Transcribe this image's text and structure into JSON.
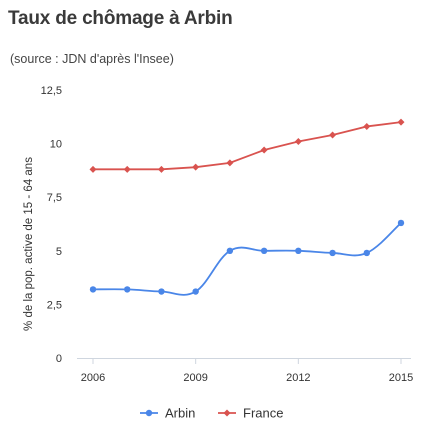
{
  "chart_data": {
    "type": "line",
    "title": "Taux de chômage à Arbin",
    "subtitle": "(source : JDN d'après l'Insee)",
    "xlabel": "",
    "ylabel": "% de la pop. active de 15 - 64 ans",
    "x": [
      2006,
      2007,
      2008,
      2009,
      2010,
      2011,
      2012,
      2013,
      2014,
      2015
    ],
    "xlim": [
      2006,
      2015
    ],
    "ylim": [
      0,
      12.5
    ],
    "x_ticks": [
      2006,
      2009,
      2012,
      2015
    ],
    "y_ticks": [
      0,
      2.5,
      5,
      7.5,
      10,
      12.5
    ],
    "x_tick_labels": [
      "2006",
      "2009",
      "2012",
      "2015"
    ],
    "y_tick_labels": [
      "0",
      "2,5",
      "5",
      "7,5",
      "10",
      "12,5"
    ],
    "grid": false,
    "legend_position": "bottom",
    "series": [
      {
        "name": "Arbin",
        "color": "#4a86e8",
        "smooth": true,
        "values": [
          3.2,
          3.2,
          3.1,
          3.1,
          5.0,
          5.0,
          5.0,
          4.9,
          4.9,
          6.3
        ]
      },
      {
        "name": "France",
        "color": "#d9534f",
        "smooth": false,
        "values": [
          8.8,
          8.8,
          8.8,
          8.9,
          9.1,
          9.7,
          10.1,
          10.4,
          10.8,
          11.0
        ]
      }
    ]
  }
}
